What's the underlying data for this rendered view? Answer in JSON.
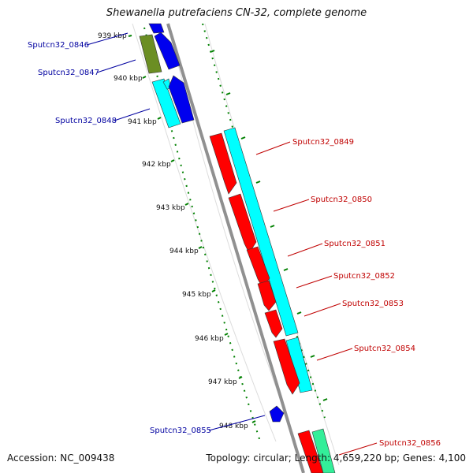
{
  "title": "Shewanella putrefaciens CN-32, complete genome",
  "footer": {
    "accession": "Accession: NC_009438",
    "info": "Topology: circular; Length: 4,659,220 bp; Genes: 4,100"
  },
  "colors": {
    "forward_label": "#c00000",
    "reverse_label": "#0000a0",
    "tick": "#008000",
    "backbone": "#909090",
    "cds_red": "#ff0000",
    "cds_cyan": "#00ffff",
    "cds_blue": "#0000ee",
    "cds_olive": "#6b8e23",
    "cds_green": "#33ee99"
  },
  "kbp_labels": [
    "939 kbp",
    "940 kbp",
    "941 kbp",
    "942 kbp",
    "943 kbp",
    "944 kbp",
    "945 kbp",
    "946 kbp",
    "947 kbp",
    "948 kbp"
  ],
  "genes_reverse": [
    "Sputcn32_0846",
    "Sputcn32_0847",
    "Sputcn32_0848",
    "Sputcn32_0855"
  ],
  "genes_forward": [
    "Sputcn32_0849",
    "Sputcn32_0850",
    "Sputcn32_0851",
    "Sputcn32_0852",
    "Sputcn32_0853",
    "Sputcn32_0854",
    "Sputcn32_0856"
  ]
}
